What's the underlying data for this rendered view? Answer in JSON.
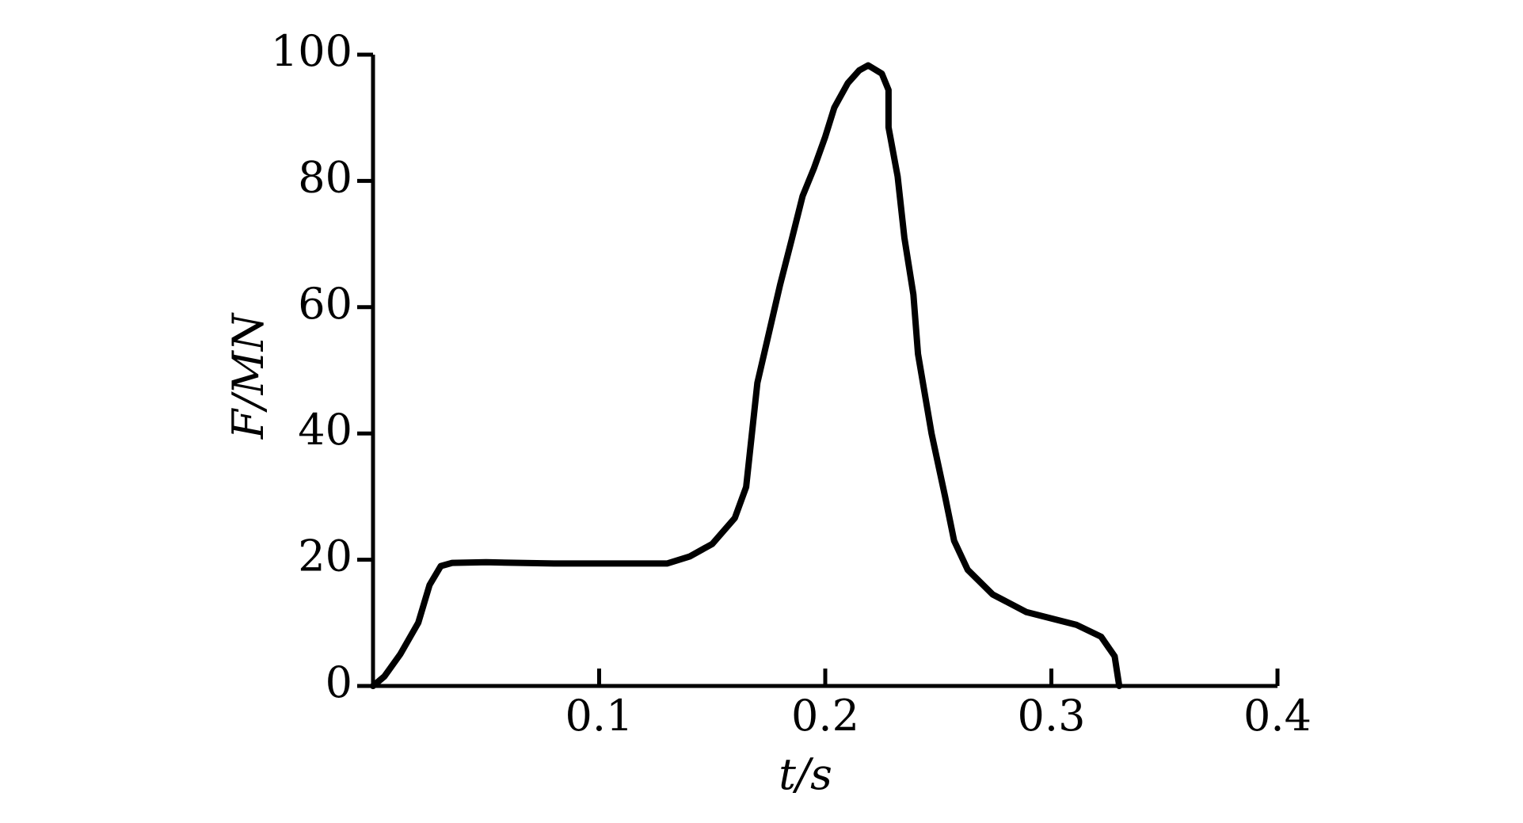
{
  "chart_data": {
    "type": "line",
    "xlabel": "t/s",
    "ylabel": "F/MN",
    "x": [
      0,
      0.005,
      0.012,
      0.02,
      0.025,
      0.03,
      0.035,
      0.05,
      0.08,
      0.13,
      0.14,
      0.15,
      0.16,
      0.165,
      0.17,
      0.18,
      0.185,
      0.19,
      0.195,
      0.2,
      0.204,
      0.21,
      0.215,
      0.219,
      0.225,
      0.228,
      0.228,
      0.232,
      0.235,
      0.239,
      0.241,
      0.247,
      0.253,
      0.257,
      0.263,
      0.274,
      0.289,
      0.311,
      0.322,
      0.328,
      0.33
    ],
    "values": [
      0,
      1.5,
      5,
      10,
      16,
      19,
      19.5,
      19.6,
      19.4,
      19.4,
      20.5,
      22.5,
      26.6,
      31.5,
      48,
      63.5,
      70.5,
      77.6,
      82,
      87,
      91.6,
      95.5,
      97.5,
      98.3,
      97,
      94.4,
      88.5,
      80.7,
      71,
      62,
      52.6,
      40,
      30,
      23,
      18.4,
      14.5,
      11.7,
      9.7,
      7.8,
      4.7,
      0
    ],
    "color": "#000000",
    "xlim": [
      0,
      0.4
    ],
    "xticks": [
      0.1,
      0.2,
      0.3,
      0.4
    ],
    "ylim": [
      0,
      100
    ],
    "yticks": [
      0,
      20,
      40,
      60,
      80,
      100
    ]
  }
}
